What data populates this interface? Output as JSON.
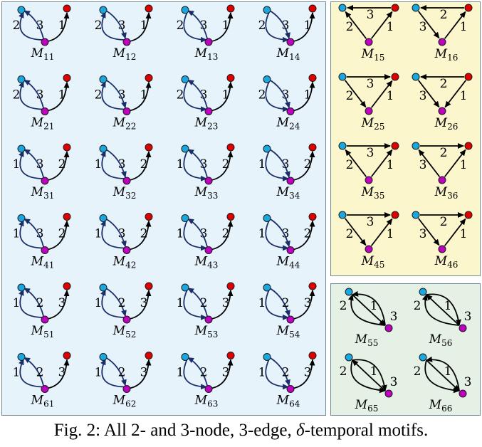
{
  "caption": {
    "prefix": "Fig. 2: All 2- and 3-node, 3-edge, ",
    "delta": "δ",
    "suffix": "-temporal motifs."
  },
  "colors": {
    "blue_node": "#19a7e0",
    "red_node": "#e00000",
    "magenta_node": "#c000c0",
    "edge_navy": "#1a2f6a",
    "edge_black": "#000000"
  },
  "motifs": [
    {
      "id": "M11",
      "label": "M",
      "sub": "11",
      "kind": "two",
      "edges": [
        [
          "2",
          "C->A"
        ],
        [
          "3",
          "B->A"
        ],
        [
          "1",
          "B->C"
        ]
      ]
    },
    {
      "id": "M12",
      "label": "M",
      "sub": "12",
      "kind": "two",
      "edges": [
        [
          "2",
          "C->A"
        ],
        [
          "3",
          "A->B"
        ],
        [
          "1",
          "B->C"
        ]
      ]
    },
    {
      "id": "M13",
      "label": "M",
      "sub": "13",
      "kind": "two",
      "edges": [
        [
          "2",
          "A->C"
        ],
        [
          "3",
          "B->A"
        ],
        [
          "1",
          "B->C"
        ]
      ]
    },
    {
      "id": "M14",
      "label": "M",
      "sub": "14",
      "kind": "two",
      "edges": [
        [
          "2",
          "A->C"
        ],
        [
          "3",
          "A->B"
        ],
        [
          "1",
          "B->C"
        ]
      ]
    },
    {
      "id": "M21",
      "label": "M",
      "sub": "21",
      "kind": "two",
      "edges": [
        [
          "2",
          "C->A"
        ],
        [
          "3",
          "B->A"
        ],
        [
          "1",
          "B->C"
        ]
      ]
    },
    {
      "id": "M22",
      "label": "M",
      "sub": "22",
      "kind": "two",
      "edges": [
        [
          "2",
          "C->A"
        ],
        [
          "3",
          "A->B"
        ],
        [
          "1",
          "B->C"
        ]
      ]
    },
    {
      "id": "M23",
      "label": "M",
      "sub": "23",
      "kind": "two",
      "edges": [
        [
          "2",
          "A->C"
        ],
        [
          "3",
          "B->A"
        ],
        [
          "1",
          "B->C"
        ]
      ]
    },
    {
      "id": "M24",
      "label": "M",
      "sub": "24",
      "kind": "two",
      "edges": [
        [
          "2",
          "A->C"
        ],
        [
          "3",
          "A->B"
        ],
        [
          "1",
          "B->C"
        ]
      ]
    },
    {
      "id": "M31",
      "label": "M",
      "sub": "31",
      "kind": "two",
      "edges": [
        [
          "1",
          "C->A"
        ],
        [
          "3",
          "B->A"
        ],
        [
          "2",
          "B->C"
        ]
      ]
    },
    {
      "id": "M32",
      "label": "M",
      "sub": "32",
      "kind": "two",
      "edges": [
        [
          "1",
          "C->A"
        ],
        [
          "3",
          "A->B"
        ],
        [
          "2",
          "B->C"
        ]
      ]
    },
    {
      "id": "M33",
      "label": "M",
      "sub": "33",
      "kind": "two",
      "edges": [
        [
          "1",
          "A->C"
        ],
        [
          "3",
          "B->A"
        ],
        [
          "2",
          "B->C"
        ]
      ]
    },
    {
      "id": "M34",
      "label": "M",
      "sub": "34",
      "kind": "two",
      "edges": [
        [
          "1",
          "A->C"
        ],
        [
          "3",
          "A->B"
        ],
        [
          "2",
          "B->C"
        ]
      ]
    },
    {
      "id": "M41",
      "label": "M",
      "sub": "41",
      "kind": "two",
      "edges": [
        [
          "1",
          "C->A"
        ],
        [
          "3",
          "B->A"
        ],
        [
          "2",
          "B->C"
        ]
      ]
    },
    {
      "id": "M42",
      "label": "M",
      "sub": "42",
      "kind": "two",
      "edges": [
        [
          "1",
          "C->A"
        ],
        [
          "3",
          "A->B"
        ],
        [
          "2",
          "B->C"
        ]
      ]
    },
    {
      "id": "M43",
      "label": "M",
      "sub": "43",
      "kind": "two",
      "edges": [
        [
          "1",
          "A->C"
        ],
        [
          "3",
          "B->A"
        ],
        [
          "2",
          "B->C"
        ]
      ]
    },
    {
      "id": "M44",
      "label": "M",
      "sub": "44",
      "kind": "two",
      "edges": [
        [
          "1",
          "A->C"
        ],
        [
          "3",
          "A->B"
        ],
        [
          "2",
          "B->C"
        ]
      ]
    },
    {
      "id": "M51",
      "label": "M",
      "sub": "51",
      "kind": "two",
      "edges": [
        [
          "1",
          "C->A"
        ],
        [
          "2",
          "B->A"
        ],
        [
          "3",
          "B->C"
        ]
      ]
    },
    {
      "id": "M52",
      "label": "M",
      "sub": "52",
      "kind": "two",
      "edges": [
        [
          "1",
          "C->A"
        ],
        [
          "2",
          "A->B"
        ],
        [
          "3",
          "B->C"
        ]
      ]
    },
    {
      "id": "M53",
      "label": "M",
      "sub": "53",
      "kind": "two",
      "edges": [
        [
          "1",
          "A->C"
        ],
        [
          "2",
          "B->A"
        ],
        [
          "3",
          "B->C"
        ]
      ]
    },
    {
      "id": "M54",
      "label": "M",
      "sub": "54",
      "kind": "two",
      "edges": [
        [
          "1",
          "A->C"
        ],
        [
          "2",
          "A->B"
        ],
        [
          "3",
          "B->C"
        ]
      ]
    },
    {
      "id": "M61",
      "label": "M",
      "sub": "61",
      "kind": "two",
      "edges": [
        [
          "1",
          "C->A"
        ],
        [
          "2",
          "B->A"
        ],
        [
          "3",
          "B->C"
        ]
      ]
    },
    {
      "id": "M62",
      "label": "M",
      "sub": "62",
      "kind": "two",
      "edges": [
        [
          "1",
          "C->A"
        ],
        [
          "2",
          "A->B"
        ],
        [
          "3",
          "B->C"
        ]
      ]
    },
    {
      "id": "M63",
      "label": "M",
      "sub": "63",
      "kind": "two",
      "edges": [
        [
          "1",
          "A->C"
        ],
        [
          "2",
          "B->A"
        ],
        [
          "3",
          "B->C"
        ]
      ]
    },
    {
      "id": "M64",
      "label": "M",
      "sub": "64",
      "kind": "two",
      "edges": [
        [
          "1",
          "A->C"
        ],
        [
          "2",
          "A->B"
        ],
        [
          "3",
          "B->C"
        ]
      ]
    },
    {
      "id": "M15",
      "label": "M",
      "sub": "15",
      "kind": "tri",
      "edges": [
        [
          "3",
          "R->L"
        ],
        [
          "2",
          "B->L"
        ],
        [
          "1",
          "B->R"
        ]
      ]
    },
    {
      "id": "M16",
      "label": "M",
      "sub": "16",
      "kind": "tri",
      "edges": [
        [
          "2",
          "R->L"
        ],
        [
          "3",
          "L->B"
        ],
        [
          "1",
          "B->R"
        ]
      ]
    },
    {
      "id": "M25",
      "label": "M",
      "sub": "25",
      "kind": "tri",
      "edges": [
        [
          "3",
          "L->R"
        ],
        [
          "2",
          "L->B"
        ],
        [
          "1",
          "B->R"
        ]
      ]
    },
    {
      "id": "M26",
      "label": "M",
      "sub": "26",
      "kind": "tri",
      "edges": [
        [
          "2",
          "R->L"
        ],
        [
          "3",
          "L->B"
        ],
        [
          "1",
          "R->B"
        ]
      ]
    },
    {
      "id": "M35",
      "label": "M",
      "sub": "35",
      "kind": "tri",
      "edges": [
        [
          "3",
          "L->R"
        ],
        [
          "2",
          "B->L"
        ],
        [
          "1",
          "B->R"
        ]
      ]
    },
    {
      "id": "M36",
      "label": "M",
      "sub": "36",
      "kind": "tri",
      "edges": [
        [
          "2",
          "L->R"
        ],
        [
          "3",
          "B->L"
        ],
        [
          "1",
          "B->R"
        ]
      ]
    },
    {
      "id": "M45",
      "label": "M",
      "sub": "45",
      "kind": "tri",
      "edges": [
        [
          "3",
          "L->R"
        ],
        [
          "2",
          "L->B"
        ],
        [
          "1",
          "B->R"
        ]
      ]
    },
    {
      "id": "M46",
      "label": "M",
      "sub": "46",
      "kind": "tri",
      "edges": [
        [
          "2",
          "L->R"
        ],
        [
          "3",
          "L->B"
        ],
        [
          "1",
          "B->R"
        ]
      ]
    },
    {
      "id": "M55",
      "label": "M",
      "sub": "55",
      "kind": "pair",
      "edges": [
        [
          "2",
          "B->A"
        ],
        [
          "1",
          "A->B"
        ],
        [
          "3",
          "B->A"
        ]
      ]
    },
    {
      "id": "M56",
      "label": "M",
      "sub": "56",
      "kind": "pair",
      "edges": [
        [
          "2",
          "B->A"
        ],
        [
          "1",
          "B->A"
        ],
        [
          "3",
          "A->B"
        ]
      ]
    },
    {
      "id": "M65",
      "label": "M",
      "sub": "65",
      "kind": "pair",
      "edges": [
        [
          "2",
          "A->B"
        ],
        [
          "1",
          "B->A"
        ],
        [
          "3",
          "A->B"
        ]
      ]
    },
    {
      "id": "M66",
      "label": "M",
      "sub": "66",
      "kind": "pair",
      "edges": [
        [
          "2",
          "A->B"
        ],
        [
          "1",
          "A->B"
        ],
        [
          "3",
          "B->A"
        ]
      ]
    }
  ]
}
